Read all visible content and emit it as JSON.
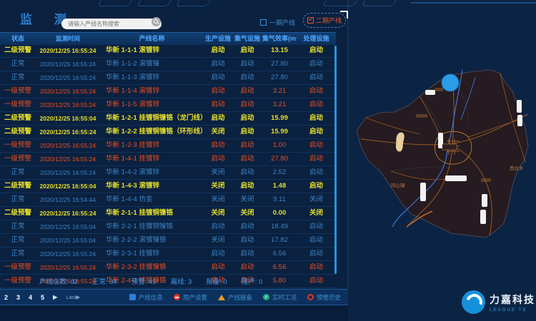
{
  "header": {
    "title": "监 测",
    "search": {
      "placeholder": "请输入产线名称搜索"
    },
    "phase1": {
      "label": "一期产线",
      "checked": false
    },
    "phase2": {
      "label": "二期产线",
      "checked": true
    }
  },
  "table": {
    "columns": [
      "状态",
      "监测时间",
      "产线名称",
      "生产设施",
      "集气设施",
      "集气效率(m³/s)",
      "处理设施"
    ],
    "rows": [
      {
        "status": "二级预警",
        "time": "2020/12/25 16:55:24",
        "name": "华新 1-1-1 滚镀锌",
        "production": "启动",
        "gas": "启动",
        "efficiency": "13.15",
        "treatment": "启动"
      },
      {
        "status": "正常",
        "time": "2020/12/25 16:55:24",
        "name": "华新 1-1-2 滚镀镍",
        "production": "启动",
        "gas": "启动",
        "efficiency": "27.80",
        "treatment": "启动"
      },
      {
        "status": "正常",
        "time": "2020/12/25 16:55:24",
        "name": "华新 1-1-3 滚镀锌",
        "production": "启动",
        "gas": "启动",
        "efficiency": "27.80",
        "treatment": "启动"
      },
      {
        "status": "一级预警",
        "time": "2020/12/25 16:55:24",
        "name": "华新 1-1-4 滚镀锌",
        "production": "启动",
        "gas": "启动",
        "efficiency": "3.21",
        "treatment": "启动"
      },
      {
        "status": "一级预警",
        "time": "2020/12/25 16:55:24",
        "name": "华新 1-1-5 滚镀锌",
        "production": "启动",
        "gas": "启动",
        "efficiency": "3.21",
        "treatment": "启动"
      },
      {
        "status": "二级预警",
        "time": "2020/12/25 16:55:04",
        "name": "华新 1-2-1 挂镀铜镍铬（龙门线）",
        "production": "启动",
        "gas": "启动",
        "efficiency": "15.99",
        "treatment": "启动"
      },
      {
        "status": "二级预警",
        "time": "2020/12/25 16:55:24",
        "name": "华新 1-2-2 挂镀铜镍铬（环形线）",
        "production": "关闭",
        "gas": "启动",
        "efficiency": "15.99",
        "treatment": "启动"
      },
      {
        "status": "一级预警",
        "time": "2020/12/25 16:55:24",
        "name": "华新 1-2-3 挂镀锌",
        "production": "启动",
        "gas": "启动",
        "efficiency": "1.00",
        "treatment": "启动"
      },
      {
        "status": "一级预警",
        "time": "2020/12/25 16:55:24",
        "name": "华新 1-4-1 挂镀锌",
        "production": "启动",
        "gas": "启动",
        "efficiency": "27.80",
        "treatment": "启动"
      },
      {
        "status": "正常",
        "time": "2020/12/25 16:55:24",
        "name": "华新 1-4-2 滚镀锌",
        "production": "关闭",
        "gas": "启动",
        "efficiency": "2.52",
        "treatment": "启动"
      },
      {
        "status": "二级预警",
        "time": "2020/12/25 16:55:04",
        "name": "华新 1-4-3 滚镀锌",
        "production": "关闭",
        "gas": "启动",
        "efficiency": "1.48",
        "treatment": "启动"
      },
      {
        "status": "正常",
        "time": "2020/12/25 16:54:44",
        "name": "华新 1-4-4 仿金",
        "production": "关闭",
        "gas": "关闭",
        "efficiency": "9.11",
        "treatment": "关闭"
      },
      {
        "status": "二级预警",
        "time": "2020/12/25 16:55:24",
        "name": "华新 2-1-1 挂镀铜镍铬",
        "production": "关闭",
        "gas": "关闭",
        "efficiency": "0.00",
        "treatment": "关闭"
      },
      {
        "status": "正常",
        "time": "2020/12/25 16:55:04",
        "name": "华新 2-2-1 挂镀铜镍铬",
        "production": "启动",
        "gas": "启动",
        "efficiency": "18.49",
        "treatment": "启动"
      },
      {
        "status": "正常",
        "time": "2020/12/25 16:55:04",
        "name": "华新 2-2-2 滚镀镍铬",
        "production": "关闭",
        "gas": "启动",
        "efficiency": "17.82",
        "treatment": "启动"
      },
      {
        "status": "正常",
        "time": "2020/12/25 16:55:24",
        "name": "华新 2-3-1 挂镀锌",
        "production": "启动",
        "gas": "启动",
        "efficiency": "6.56",
        "treatment": "启动"
      },
      {
        "status": "一级预警",
        "time": "2020/12/25 16:55:24",
        "name": "华新 2-3-2 挂镀镍铬",
        "production": "启动",
        "gas": "启动",
        "efficiency": "6.56",
        "treatment": "启动"
      },
      {
        "status": "一级预警",
        "time": "2020/12/25 16:55:24",
        "name": "华新 2-4-1 挂镀镍铬",
        "production": "启动",
        "gas": "启动",
        "efficiency": "5.80",
        "treatment": "启动"
      }
    ]
  },
  "summary": {
    "items": [
      {
        "label": "产线总数",
        "value": "82"
      },
      {
        "label": "正常",
        "value": "34"
      },
      {
        "label": "预警",
        "value": "45"
      },
      {
        "label": "离线",
        "value": "3"
      },
      {
        "label": "报备",
        "value": "0"
      },
      {
        "label": "限产",
        "value": "0"
      }
    ]
  },
  "pagination": {
    "pages": [
      "2",
      "3",
      "4",
      "5"
    ],
    "next_label": "▶",
    "last_label": "Last▶"
  },
  "legend": {
    "items": [
      {
        "label": "产线信息",
        "shape": "info-square",
        "color": "#2d7fd4"
      },
      {
        "label": "限产设置",
        "shape": "stop-circle",
        "color": "#e03522"
      },
      {
        "label": "产线报备",
        "shape": "triangle",
        "color": "#e89b25"
      },
      {
        "label": "实时工况",
        "shape": "gauge",
        "color": "#1fae86"
      },
      {
        "label": "预警历史",
        "shape": "alert-dot",
        "color": "#e03522"
      }
    ]
  },
  "footer_logo": {
    "name": "力嘉科技",
    "subtitle": "LEAGUE TE"
  },
  "map": {
    "labels": [
      {
        "text": "同山镇"
      },
      {
        "text": "西北乡"
      }
    ],
    "marker_color": "#2b9de8"
  },
  "status_colors": {
    "normal": "#3d85c6",
    "warn1": "#f04e1e",
    "warn2": "#e6df2a"
  }
}
